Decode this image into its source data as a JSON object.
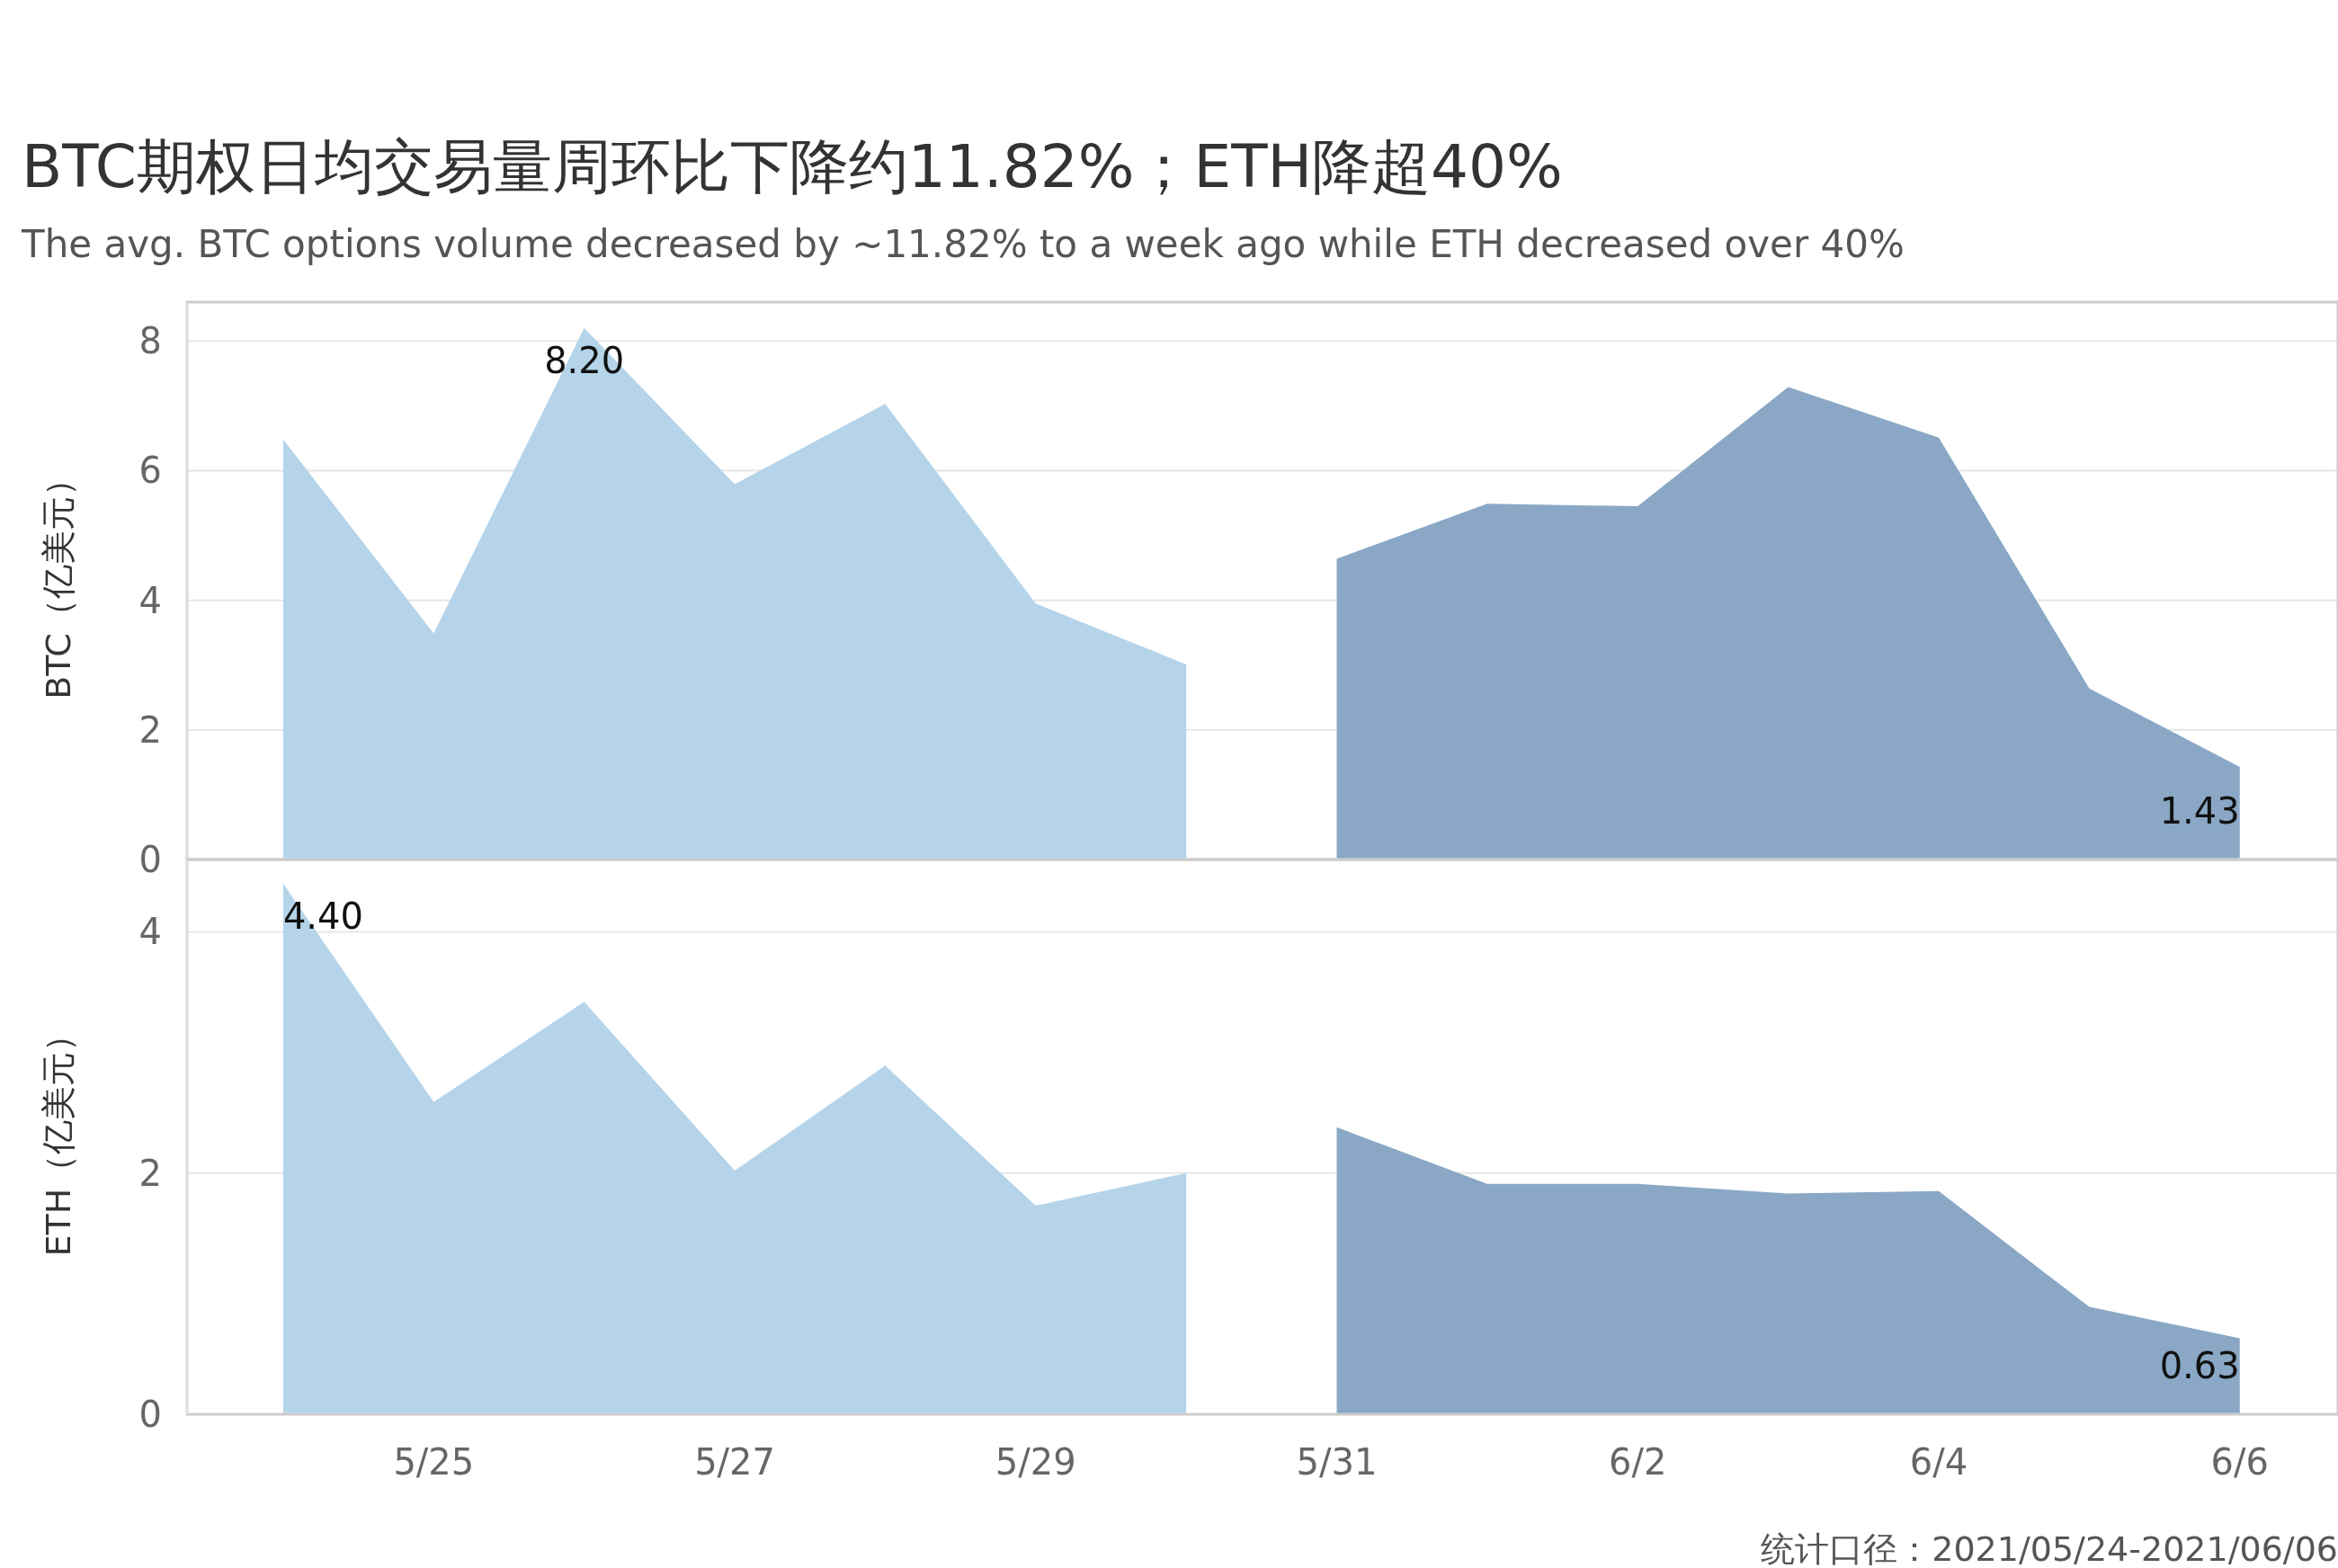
{
  "chart_data": [
    {
      "type": "area",
      "title": "BTC期权日均交易量周环比下降约11.82%；ETH降超40%",
      "subtitle": "The avg. BTC options volume decreased by ~11.82% to a week ago while ETH decreased over 40%",
      "ylabel": "BTC（亿美元）",
      "xlim": [
        "2021-05-23T08:40",
        "2021-06-06T15:40"
      ],
      "ylim": [
        0,
        8.6
      ],
      "yticks": [
        0,
        2,
        4,
        6,
        8
      ],
      "grid": "y",
      "tick_labels": "y",
      "series": [
        {
          "color": "#b5d4ea",
          "x": [
            "2021-05-24",
            "2021-05-25",
            "2021-05-26",
            "2021-05-27",
            "2021-05-28",
            "2021-05-29",
            "2021-05-30"
          ],
          "values": [
            6.48,
            3.49,
            8.2,
            5.79,
            7.03,
            3.95,
            3.01
          ]
        },
        {
          "color": "#8aa8c6",
          "x": [
            "2021-05-31",
            "2021-06-01",
            "2021-06-02",
            "2021-06-03",
            "2021-06-04",
            "2021-06-05",
            "2021-06-06"
          ],
          "values": [
            4.64,
            5.49,
            5.45,
            7.29,
            6.51,
            2.64,
            1.43
          ]
        }
      ],
      "annotations": [
        {
          "text": "8.20",
          "x": "2021-05-26",
          "y": 8.2
        },
        {
          "text": "1.43",
          "x": "2021-06-06",
          "y": 1.43
        }
      ]
    },
    {
      "type": "area",
      "ylabel": "ETH（亿美元）",
      "xlim": [
        "2021-05-23T08:40",
        "2021-06-06T15:40"
      ],
      "xticks": [
        {
          "value": "2021-05-25",
          "label": "5/25"
        },
        {
          "value": "2021-05-27",
          "label": "5/27"
        },
        {
          "value": "2021-05-29",
          "label": "5/29"
        },
        {
          "value": "2021-05-31",
          "label": "5/31"
        },
        {
          "value": "2021-06-02",
          "label": "6/2"
        },
        {
          "value": "2021-06-04",
          "label": "6/4"
        },
        {
          "value": "2021-06-06",
          "label": "6/6"
        }
      ],
      "ylim": [
        0,
        4.6
      ],
      "yticks": [
        0,
        2,
        4
      ],
      "grid": "y",
      "series": [
        {
          "color": "#b5d4ea",
          "x": [
            "2021-05-24",
            "2021-05-25",
            "2021-05-26",
            "2021-05-27",
            "2021-05-28",
            "2021-05-29",
            "2021-05-30"
          ],
          "values": [
            4.4,
            2.59,
            3.42,
            2.02,
            2.89,
            1.73,
            2.0
          ]
        },
        {
          "color": "#8aa8c6",
          "x": [
            "2021-05-31",
            "2021-06-01",
            "2021-06-02",
            "2021-06-03",
            "2021-06-04",
            "2021-06-05",
            "2021-06-06"
          ],
          "values": [
            2.38,
            1.91,
            1.91,
            1.83,
            1.85,
            0.89,
            0.63
          ]
        }
      ],
      "annotations": [
        {
          "text": "4.40",
          "x": "2021-05-24",
          "y": 4.4
        },
        {
          "text": "0.63",
          "x": "2021-06-06",
          "y": 0.63
        },
        "统计口径：2021/05/24-2021/06/06"
      ]
    }
  ]
}
